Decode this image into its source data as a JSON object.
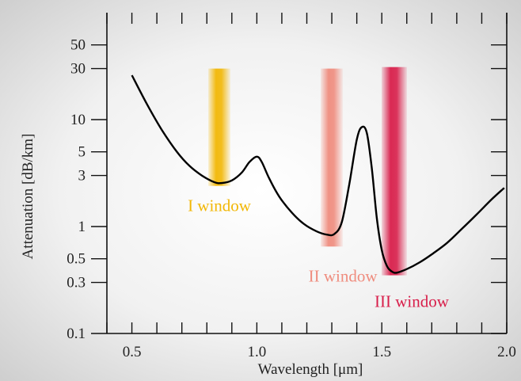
{
  "chart_data": {
    "type": "line",
    "title": "",
    "xlabel": "Wavelength [μm]",
    "ylabel": "Attenuation  [dB/km]",
    "x_scale": "linear",
    "y_scale": "log",
    "xlim": [
      0.4,
      2.0
    ],
    "ylim": [
      0.1,
      100
    ],
    "grid": false,
    "x_ticks": [
      0.5,
      1.0,
      1.5,
      2.0
    ],
    "x_tick_labels": [
      "0.5",
      "1.0",
      "1.5",
      "2.0"
    ],
    "y_ticks": [
      0.1,
      0.3,
      0.5,
      1,
      3,
      5,
      10,
      30,
      50
    ],
    "y_tick_labels": [
      "0.1",
      "0.3",
      "0.5",
      "1",
      "3",
      "5",
      "10",
      "30",
      "50"
    ],
    "series": [
      {
        "x": [
          0.5,
          0.56,
          0.62,
          0.68,
          0.73,
          0.78,
          0.83,
          0.86,
          0.9,
          0.94,
          0.97,
          1.0,
          1.02,
          1.05,
          1.09,
          1.14,
          1.19,
          1.24,
          1.28,
          1.31,
          1.34,
          1.37,
          1.4,
          1.42,
          1.44,
          1.46,
          1.48,
          1.5,
          1.52,
          1.54,
          1.56,
          1.6,
          1.65,
          1.7,
          1.76,
          1.82,
          1.88,
          1.94,
          1.99
        ],
        "y": [
          26,
          14,
          8,
          5,
          3.7,
          3.0,
          2.6,
          2.55,
          2.7,
          3.2,
          4.0,
          4.5,
          4.0,
          2.8,
          1.9,
          1.35,
          1.05,
          0.9,
          0.84,
          0.85,
          1.1,
          2.5,
          6.5,
          8.5,
          7.5,
          3.5,
          1.2,
          0.6,
          0.43,
          0.38,
          0.37,
          0.4,
          0.46,
          0.55,
          0.7,
          0.95,
          1.3,
          1.8,
          2.3
        ],
        "color": "#000000"
      }
    ],
    "bands": [
      {
        "label": "I window",
        "x": 0.85,
        "y_range": [
          2.4,
          30
        ],
        "color": "#f2b705"
      },
      {
        "label": "II window",
        "x": 1.3,
        "y_range": [
          0.65,
          30
        ],
        "color": "#ef8c7e"
      },
      {
        "label": "III window",
        "x": 1.55,
        "y_range": [
          0.35,
          31
        ],
        "color": "#d81e4a"
      }
    ]
  }
}
